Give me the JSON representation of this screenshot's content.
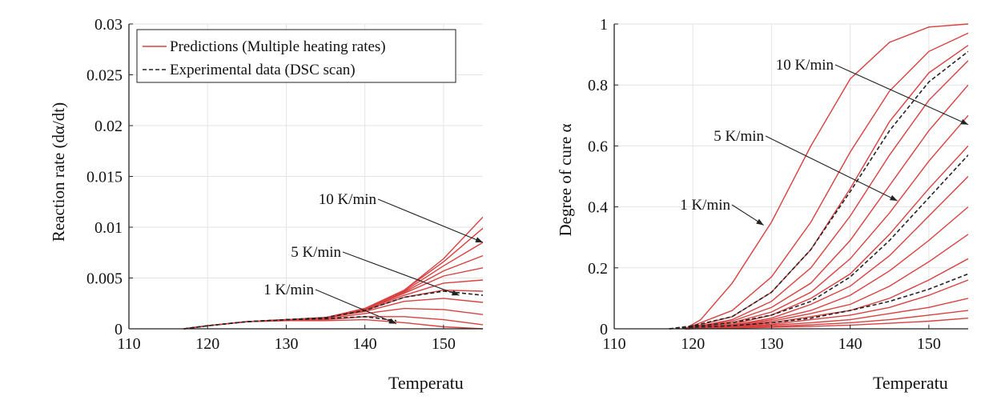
{
  "chart_data": [
    {
      "type": "line",
      "ylabel": "Reaction rate (dα/dt)",
      "xlabel": "Temperatu",
      "xlim": [
        110,
        155
      ],
      "ylim": [
        0,
        0.03
      ],
      "xticks": [
        "110",
        "120",
        "130",
        "140",
        "150"
      ],
      "yticks": [
        "0",
        "0.005",
        "0.01",
        "0.015",
        "0.02",
        "0.025",
        "0.03"
      ],
      "grid": true,
      "legend_position": "top-right",
      "legend": [
        {
          "label": "Predictions (Multiple heating rates)",
          "style": "solid",
          "color": "#d94040"
        },
        {
          "label": "Experimental data (DSC scan)",
          "style": "dashed",
          "color": "#222222"
        }
      ],
      "annotations": [
        {
          "text": "10 K/min",
          "points_to": [
            155,
            0.0085
          ]
        },
        {
          "text": "5 K/min",
          "points_to": [
            152,
            0.0033
          ]
        },
        {
          "text": "1 K/min",
          "points_to": [
            144,
            0.0005
          ]
        }
      ],
      "series": [
        {
          "style": "solid",
          "color": "#d94040",
          "x": [
            117,
            120,
            125,
            130,
            135,
            140,
            145,
            150,
            155
          ],
          "y": [
            0,
            0.0003,
            0.0007,
            0.0008,
            0.0008,
            0.0009,
            0.0006,
            0.0002,
            0
          ]
        },
        {
          "style": "solid",
          "color": "#d94040",
          "x": [
            117,
            120,
            125,
            130,
            135,
            140,
            145,
            150,
            155
          ],
          "y": [
            0,
            0.0003,
            0.0007,
            0.0008,
            0.0009,
            0.0012,
            0.0012,
            0.0009,
            0.0004
          ]
        },
        {
          "style": "solid",
          "color": "#d94040",
          "x": [
            117,
            120,
            125,
            130,
            135,
            140,
            145,
            150,
            155
          ],
          "y": [
            0,
            0.0003,
            0.0007,
            0.0009,
            0.001,
            0.0015,
            0.002,
            0.0019,
            0.0014
          ]
        },
        {
          "style": "solid",
          "color": "#d94040",
          "x": [
            117,
            120,
            125,
            130,
            135,
            140,
            145,
            150,
            155
          ],
          "y": [
            0,
            0.0003,
            0.0007,
            0.0009,
            0.0011,
            0.0017,
            0.0027,
            0.003,
            0.0026
          ]
        },
        {
          "style": "solid",
          "color": "#d94040",
          "x": [
            117,
            120,
            125,
            130,
            135,
            140,
            145,
            150,
            155
          ],
          "y": [
            0,
            0.0003,
            0.0007,
            0.0009,
            0.0011,
            0.0018,
            0.0031,
            0.0038,
            0.0037
          ]
        },
        {
          "style": "solid",
          "color": "#d94040",
          "x": [
            117,
            120,
            125,
            130,
            135,
            140,
            145,
            150,
            155
          ],
          "y": [
            0,
            0.0003,
            0.0007,
            0.0009,
            0.0011,
            0.0019,
            0.0033,
            0.0045,
            0.0048
          ]
        },
        {
          "style": "solid",
          "color": "#d94040",
          "x": [
            117,
            120,
            125,
            130,
            135,
            140,
            145,
            150,
            155
          ],
          "y": [
            0,
            0.0003,
            0.0007,
            0.0009,
            0.0011,
            0.0019,
            0.0035,
            0.0052,
            0.006
          ]
        },
        {
          "style": "solid",
          "color": "#d94040",
          "x": [
            117,
            120,
            125,
            130,
            135,
            140,
            145,
            150,
            155
          ],
          "y": [
            0,
            0.0003,
            0.0007,
            0.0009,
            0.0011,
            0.0019,
            0.0036,
            0.0057,
            0.0072
          ]
        },
        {
          "style": "solid",
          "color": "#d94040",
          "x": [
            117,
            120,
            125,
            130,
            135,
            140,
            145,
            150,
            155
          ],
          "y": [
            0,
            0.0003,
            0.0007,
            0.0009,
            0.0011,
            0.002,
            0.0037,
            0.0062,
            0.0085
          ]
        },
        {
          "style": "solid",
          "color": "#d94040",
          "x": [
            117,
            120,
            125,
            130,
            135,
            140,
            145,
            150,
            155
          ],
          "y": [
            0,
            0.0003,
            0.0007,
            0.0009,
            0.0011,
            0.002,
            0.0038,
            0.0066,
            0.0099
          ]
        },
        {
          "style": "solid",
          "color": "#d94040",
          "x": [
            117,
            120,
            125,
            130,
            135,
            140,
            145,
            150,
            155
          ],
          "y": [
            0,
            0.0003,
            0.0007,
            0.0009,
            0.0011,
            0.002,
            0.0038,
            0.0069,
            0.011
          ]
        },
        {
          "style": "dashed",
          "color": "#222222",
          "x": [
            117,
            120,
            125,
            130,
            135,
            140,
            145,
            150,
            155
          ],
          "y": [
            0,
            0.0003,
            0.0007,
            0.0009,
            0.0011,
            0.0018,
            0.0031,
            0.0037,
            0.0033
          ]
        },
        {
          "style": "dashed",
          "color": "#222222",
          "x": [
            117,
            120,
            125,
            130,
            135,
            140,
            144
          ],
          "y": [
            0,
            0.0003,
            0.0007,
            0.0009,
            0.001,
            0.0012,
            0.0008
          ]
        }
      ]
    },
    {
      "type": "line",
      "ylabel": "Degree of cure α",
      "xlabel": "Temperatu",
      "xlim": [
        110,
        155
      ],
      "ylim": [
        0,
        1
      ],
      "xticks": [
        "110",
        "120",
        "130",
        "140",
        "150"
      ],
      "yticks": [
        "0",
        "0.2",
        "0.4",
        "0.6",
        "0.8",
        "1"
      ],
      "grid": true,
      "annotations": [
        {
          "text": "10 K/min",
          "points_to": [
            155,
            0.67
          ]
        },
        {
          "text": "5 K/min",
          "points_to": [
            146,
            0.42
          ]
        },
        {
          "text": "1 K/min",
          "points_to": [
            129,
            0.34
          ]
        }
      ],
      "series": [
        {
          "style": "solid",
          "color": "#d94040",
          "x": [
            119,
            121,
            125,
            130,
            135,
            140,
            145,
            150,
            155
          ],
          "y": [
            0,
            0.03,
            0.15,
            0.35,
            0.6,
            0.82,
            0.94,
            0.99,
            1.0
          ]
        },
        {
          "style": "solid",
          "color": "#d94040",
          "x": [
            119,
            125,
            130,
            135,
            140,
            145,
            150,
            155
          ],
          "y": [
            0,
            0.06,
            0.17,
            0.35,
            0.58,
            0.78,
            0.91,
            0.97
          ]
        },
        {
          "style": "solid",
          "color": "#d94040",
          "x": [
            119,
            125,
            130,
            135,
            140,
            145,
            150,
            155
          ],
          "y": [
            0,
            0.04,
            0.12,
            0.26,
            0.46,
            0.68,
            0.84,
            0.93
          ]
        },
        {
          "style": "solid",
          "color": "#d94040",
          "x": [
            119,
            125,
            130,
            135,
            140,
            145,
            150,
            155
          ],
          "y": [
            0,
            0.03,
            0.09,
            0.2,
            0.37,
            0.57,
            0.75,
            0.88
          ]
        },
        {
          "style": "solid",
          "color": "#d94040",
          "x": [
            119,
            125,
            130,
            135,
            140,
            145,
            150,
            155
          ],
          "y": [
            0,
            0.025,
            0.07,
            0.15,
            0.29,
            0.47,
            0.65,
            0.8
          ]
        },
        {
          "style": "solid",
          "color": "#d94040",
          "x": [
            119,
            125,
            130,
            135,
            140,
            145,
            150,
            155
          ],
          "y": [
            0,
            0.02,
            0.055,
            0.12,
            0.23,
            0.38,
            0.55,
            0.7
          ]
        },
        {
          "style": "solid",
          "color": "#d94040",
          "x": [
            119,
            125,
            130,
            135,
            140,
            145,
            150,
            155
          ],
          "y": [
            0,
            0.015,
            0.045,
            0.1,
            0.18,
            0.31,
            0.46,
            0.6
          ]
        },
        {
          "style": "solid",
          "color": "#d94040",
          "x": [
            119,
            125,
            130,
            135,
            140,
            145,
            150,
            155
          ],
          "y": [
            0,
            0.012,
            0.035,
            0.08,
            0.14,
            0.24,
            0.37,
            0.5
          ]
        },
        {
          "style": "solid",
          "color": "#d94040",
          "x": [
            119,
            125,
            130,
            135,
            140,
            145,
            150,
            155
          ],
          "y": [
            0,
            0.01,
            0.03,
            0.06,
            0.11,
            0.19,
            0.29,
            0.4
          ]
        },
        {
          "style": "solid",
          "color": "#d94040",
          "x": [
            119,
            125,
            130,
            135,
            140,
            145,
            150,
            155
          ],
          "y": [
            0,
            0.008,
            0.025,
            0.05,
            0.08,
            0.14,
            0.22,
            0.31
          ]
        },
        {
          "style": "solid",
          "color": "#d94040",
          "x": [
            119,
            125,
            130,
            135,
            140,
            145,
            150,
            155
          ],
          "y": [
            0,
            0.006,
            0.02,
            0.04,
            0.06,
            0.1,
            0.16,
            0.23
          ]
        },
        {
          "style": "solid",
          "color": "#d94040",
          "x": [
            119,
            125,
            130,
            135,
            140,
            145,
            150,
            155
          ],
          "y": [
            0,
            0.005,
            0.015,
            0.03,
            0.045,
            0.07,
            0.11,
            0.16
          ]
        },
        {
          "style": "solid",
          "color": "#d94040",
          "x": [
            119,
            125,
            130,
            135,
            140,
            145,
            150,
            155
          ],
          "y": [
            0,
            0.004,
            0.012,
            0.02,
            0.03,
            0.05,
            0.07,
            0.1
          ]
        },
        {
          "style": "solid",
          "color": "#d94040",
          "x": [
            119,
            125,
            130,
            135,
            140,
            145,
            150,
            155
          ],
          "y": [
            0,
            0.003,
            0.008,
            0.013,
            0.02,
            0.03,
            0.045,
            0.06
          ]
        },
        {
          "style": "solid",
          "color": "#d94040",
          "x": [
            119,
            125,
            130,
            135,
            140,
            145,
            150,
            155
          ],
          "y": [
            0,
            0.002,
            0.005,
            0.008,
            0.012,
            0.018,
            0.025,
            0.035
          ]
        },
        {
          "style": "dashed",
          "color": "#222222",
          "x": [
            117,
            120,
            125,
            130,
            135,
            140,
            145,
            150,
            155
          ],
          "y": [
            0,
            0.01,
            0.04,
            0.12,
            0.26,
            0.45,
            0.65,
            0.81,
            0.91
          ]
        },
        {
          "style": "dashed",
          "color": "#222222",
          "x": [
            117,
            120,
            125,
            130,
            135,
            140,
            145,
            150,
            155
          ],
          "y": [
            0,
            0.008,
            0.02,
            0.045,
            0.09,
            0.17,
            0.29,
            0.43,
            0.57
          ]
        },
        {
          "style": "dashed",
          "color": "#222222",
          "x": [
            117,
            120,
            125,
            130,
            135,
            140,
            145,
            150,
            155
          ],
          "y": [
            0,
            0.005,
            0.01,
            0.02,
            0.035,
            0.06,
            0.09,
            0.13,
            0.18
          ]
        }
      ]
    }
  ]
}
